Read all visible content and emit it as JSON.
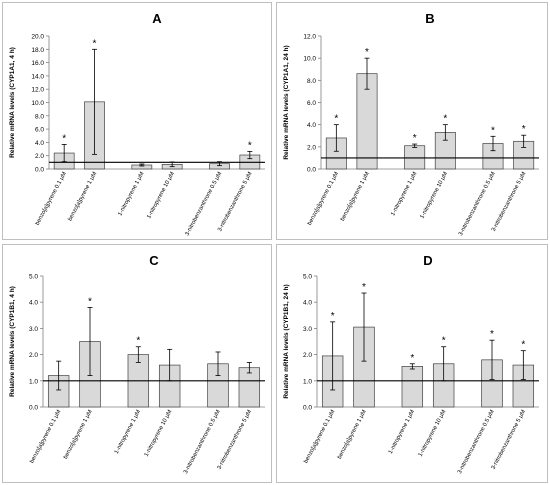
{
  "chart_data": [
    {
      "type": "bar",
      "title": "A",
      "ylabel": "Relative mRNA levels (CYP1A1, 4 h)",
      "ylim": [
        0,
        20
      ],
      "yticks": [
        "0.0",
        "2.0",
        "4.0",
        "6.0",
        "8.0",
        "10.0",
        "12.0",
        "14.0",
        "16.0",
        "18.0",
        "20.0"
      ],
      "baseline": 1.0,
      "categories": [
        "benzo[a]pyrene 0.1 μM",
        "benzo[a]pyrene 1 μM",
        "1-nitropyrene 1 μM",
        "1-nitropyrene 10 μM",
        "3-nitrobenzanthrone 0.5 μM",
        "3-nitrobenzanthrone 5 μM"
      ],
      "values": [
        2.4,
        10.1,
        0.6,
        0.7,
        0.8,
        2.1
      ],
      "error": [
        1.3,
        7.9,
        0.15,
        0.35,
        0.3,
        0.55
      ],
      "significant": [
        true,
        true,
        false,
        false,
        false,
        true
      ],
      "significance_label": "*"
    },
    {
      "type": "bar",
      "title": "B",
      "ylabel": "Relative mRNA levels (CYP1A1, 24 h)",
      "ylim": [
        0,
        12
      ],
      "yticks": [
        "0.0",
        "2.0",
        "4.0",
        "6.0",
        "8.0",
        "10.0",
        "12.0"
      ],
      "baseline": 1.0,
      "categories": [
        "benzo[a]pyrene 0.1 μM",
        "benzo[a]pyrene 1 μM",
        "1-nitropyrene 1 μM",
        "1-nitropyrene 10 μM",
        "3-nitrobenzanthrone 0.5 μM",
        "3-nitrobenzanthrone 5 μM"
      ],
      "values": [
        2.8,
        8.6,
        2.1,
        3.3,
        2.3,
        2.5
      ],
      "error": [
        1.2,
        1.4,
        0.15,
        0.7,
        0.65,
        0.55
      ],
      "significant": [
        true,
        true,
        true,
        true,
        true,
        true
      ],
      "significance_label": "*"
    },
    {
      "type": "bar",
      "title": "C",
      "ylabel": "Relative mRNA levels (CYP1B1, 4 h)",
      "ylim": [
        0,
        5
      ],
      "yticks": [
        "0.0",
        "1.0",
        "2.0",
        "3.0",
        "4.0",
        "5.0"
      ],
      "baseline": 1.0,
      "categories": [
        "benzo[a]pyrene 0.1 μM",
        "benzo[a]pyrene 1 μM",
        "1-nitropyrene 1 μM",
        "1-nitropyrene 10 μM",
        "3-nitrobenzanthrone 0.5 μM",
        "3-nitrobenzanthrone 5 μM"
      ],
      "values": [
        1.2,
        2.5,
        2.0,
        1.6,
        1.65,
        1.5
      ],
      "error": [
        0.55,
        1.3,
        0.3,
        0.6,
        0.45,
        0.2
      ],
      "significant": [
        false,
        true,
        true,
        false,
        false,
        false
      ],
      "significance_label": "*"
    },
    {
      "type": "bar",
      "title": "D",
      "ylabel": "Relative mRNA levels (CYP1B1, 24 h)",
      "ylim": [
        0,
        5
      ],
      "yticks": [
        "0.0",
        "1.0",
        "2.0",
        "3.0",
        "4.0",
        "5.0"
      ],
      "baseline": 1.0,
      "categories": [
        "benzo[a]pyrene 0.1 μM",
        "benzo[a]pyrene 1 μM",
        "1-nitropyrene 1 μM",
        "1-nitropyrene 10 μM",
        "3-nitrobenzanthrone 0.5 μM",
        "3-nitrobenzanthrone 5 μM"
      ],
      "values": [
        1.95,
        3.05,
        1.55,
        1.65,
        1.8,
        1.6
      ],
      "error": [
        1.3,
        1.3,
        0.1,
        0.65,
        0.75,
        0.55
      ],
      "significant": [
        true,
        true,
        true,
        true,
        true,
        true
      ],
      "significance_label": "*"
    }
  ],
  "colors": {
    "bar_fill": "#d9d9d9",
    "bar_stroke": "#404040",
    "axis": "#808080",
    "baseline": "#000000",
    "text": "#000000",
    "panel_border": "#bfbfbf"
  }
}
